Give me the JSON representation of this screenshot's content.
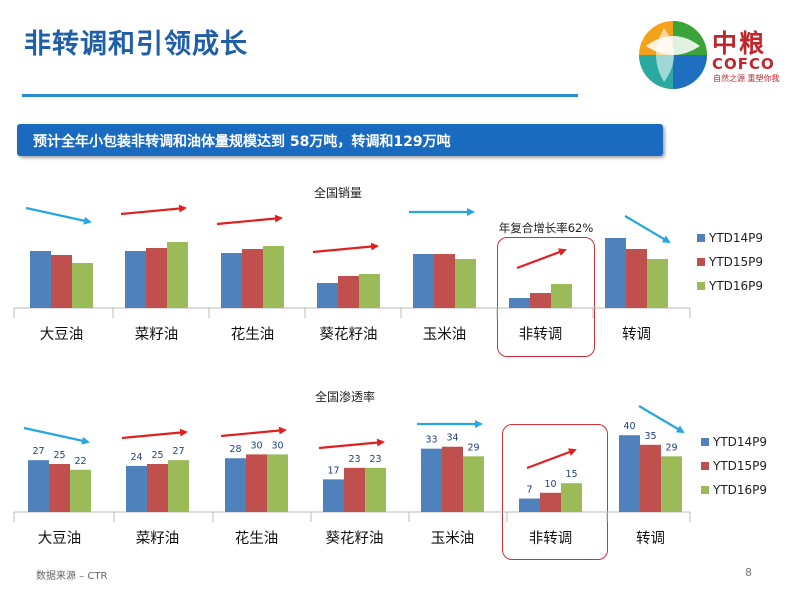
{
  "header": {
    "title": "非转调和引领成长",
    "logo_cn": "中粮",
    "logo_en": "COFCO",
    "logo_tagline": "自然之源 重塑你我"
  },
  "banner": {
    "text": "预计全年小包装非转调和油体量规模达到 58万吨，转调和129万吨"
  },
  "footer": {
    "source": "数据来源 – CTR",
    "page": "8"
  },
  "colors": {
    "ytd14": "#4f81bd",
    "ytd15": "#c0504d",
    "ytd16": "#9bbb59",
    "accent": "#1a6bc0",
    "trend_up": "#e02020",
    "trend_down": "#27a6e0"
  },
  "chart_data": [
    {
      "type": "bar",
      "title": "全国销量",
      "annotation": "年复合增长率62%",
      "categories": [
        "大豆油",
        "菜籽油",
        "花生油",
        "葵花籽油",
        "玉米油",
        "非转调",
        "转调"
      ],
      "highlighted_category": "非转调",
      "value_labels_shown": false,
      "trend": [
        "down",
        "up",
        "up",
        "up",
        "flat",
        "up",
        "down"
      ],
      "series": [
        {
          "name": "YTD14P9",
          "values": [
            57,
            57,
            55,
            25,
            54,
            10,
            70
          ]
        },
        {
          "name": "YTD15P9",
          "values": [
            53,
            60,
            59,
            32,
            54,
            15,
            59
          ]
        },
        {
          "name": "YTD16P9",
          "values": [
            45,
            66,
            62,
            34,
            49,
            24,
            49
          ]
        }
      ],
      "ylim": [
        0,
        80
      ],
      "legend": "right"
    },
    {
      "type": "bar",
      "title": "全国渗透率",
      "categories": [
        "大豆油",
        "菜籽油",
        "花生油",
        "葵花籽油",
        "玉米油",
        "非转调",
        "转调"
      ],
      "highlighted_category": "非转调",
      "value_labels_shown": true,
      "trend": [
        "down",
        "up",
        "up",
        "up",
        "flat",
        "up",
        "down"
      ],
      "series": [
        {
          "name": "YTD14P9",
          "values": [
            27,
            24,
            28,
            17,
            33,
            7,
            40
          ]
        },
        {
          "name": "YTD15P9",
          "values": [
            25,
            25,
            30,
            23,
            34,
            10,
            35
          ]
        },
        {
          "name": "YTD16P9",
          "values": [
            22,
            27,
            30,
            23,
            29,
            15,
            29
          ]
        }
      ],
      "ylim": [
        0,
        48
      ],
      "legend": "right"
    }
  ]
}
